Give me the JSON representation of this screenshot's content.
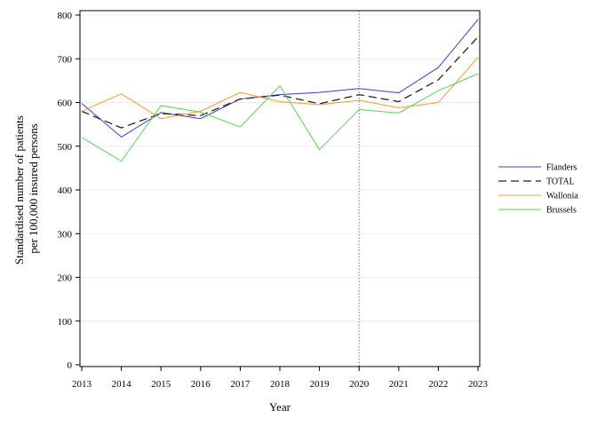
{
  "chart_data": {
    "type": "line",
    "title": "",
    "xlabel": "Year",
    "ylabel_lines": [
      "Standardised number of patients",
      "per 100,000 insured persons"
    ],
    "x": [
      2013,
      2014,
      2015,
      2016,
      2017,
      2018,
      2019,
      2020,
      2021,
      2022,
      2023
    ],
    "ylim": [
      0,
      800
    ],
    "yticks": [
      0,
      100,
      200,
      300,
      400,
      500,
      600,
      700,
      800
    ],
    "grid": "horizontal",
    "legend_position": "right",
    "reference_line": {
      "x": 2020,
      "style": "dotted"
    },
    "series": [
      {
        "name": "Flanders",
        "color": "#3b3bd6",
        "dash": "solid",
        "values": [
          598,
          521,
          577,
          563,
          608,
          618,
          623,
          632,
          622,
          680,
          790
        ]
      },
      {
        "name": "TOTAL",
        "color": "#222222",
        "dash": "dashed",
        "values": [
          580,
          542,
          575,
          570,
          608,
          617,
          597,
          618,
          602,
          652,
          750
        ]
      },
      {
        "name": "Wallonia",
        "color": "#f39c32",
        "dash": "solid",
        "values": [
          580,
          620,
          563,
          580,
          623,
          602,
          595,
          605,
          588,
          600,
          703
        ]
      },
      {
        "name": "Brussels",
        "color": "#5ccf5c",
        "dash": "solid",
        "values": [
          520,
          466,
          593,
          578,
          544,
          638,
          492,
          584,
          576,
          627,
          666
        ]
      }
    ]
  }
}
